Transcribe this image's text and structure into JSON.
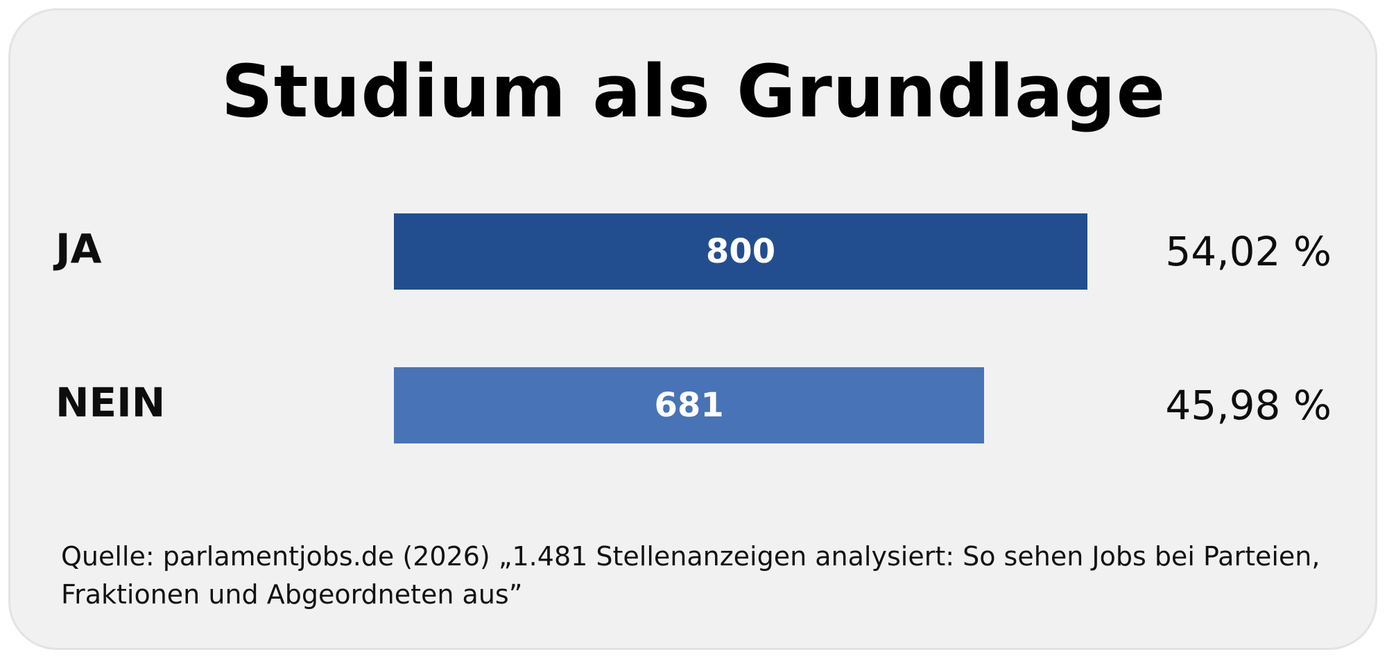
{
  "chart_data": {
    "type": "bar",
    "orientation": "horizontal",
    "title": "Studium als Grundlage",
    "categories": [
      "JA",
      "NEIN"
    ],
    "values": [
      800,
      681
    ],
    "value_labels": [
      "800",
      "681"
    ],
    "percent_labels": [
      "54,02 %",
      "45,98 %"
    ],
    "colors": [
      "#224e8f",
      "#4873b6"
    ],
    "grid": false,
    "legend": "none",
    "source": "Quelle: parlamentjobs.de (2026) „1.481 Stellenanzeigen analysiert: So sehen Jobs bei Parteien, Fraktionen und Abgeordneten aus”"
  }
}
